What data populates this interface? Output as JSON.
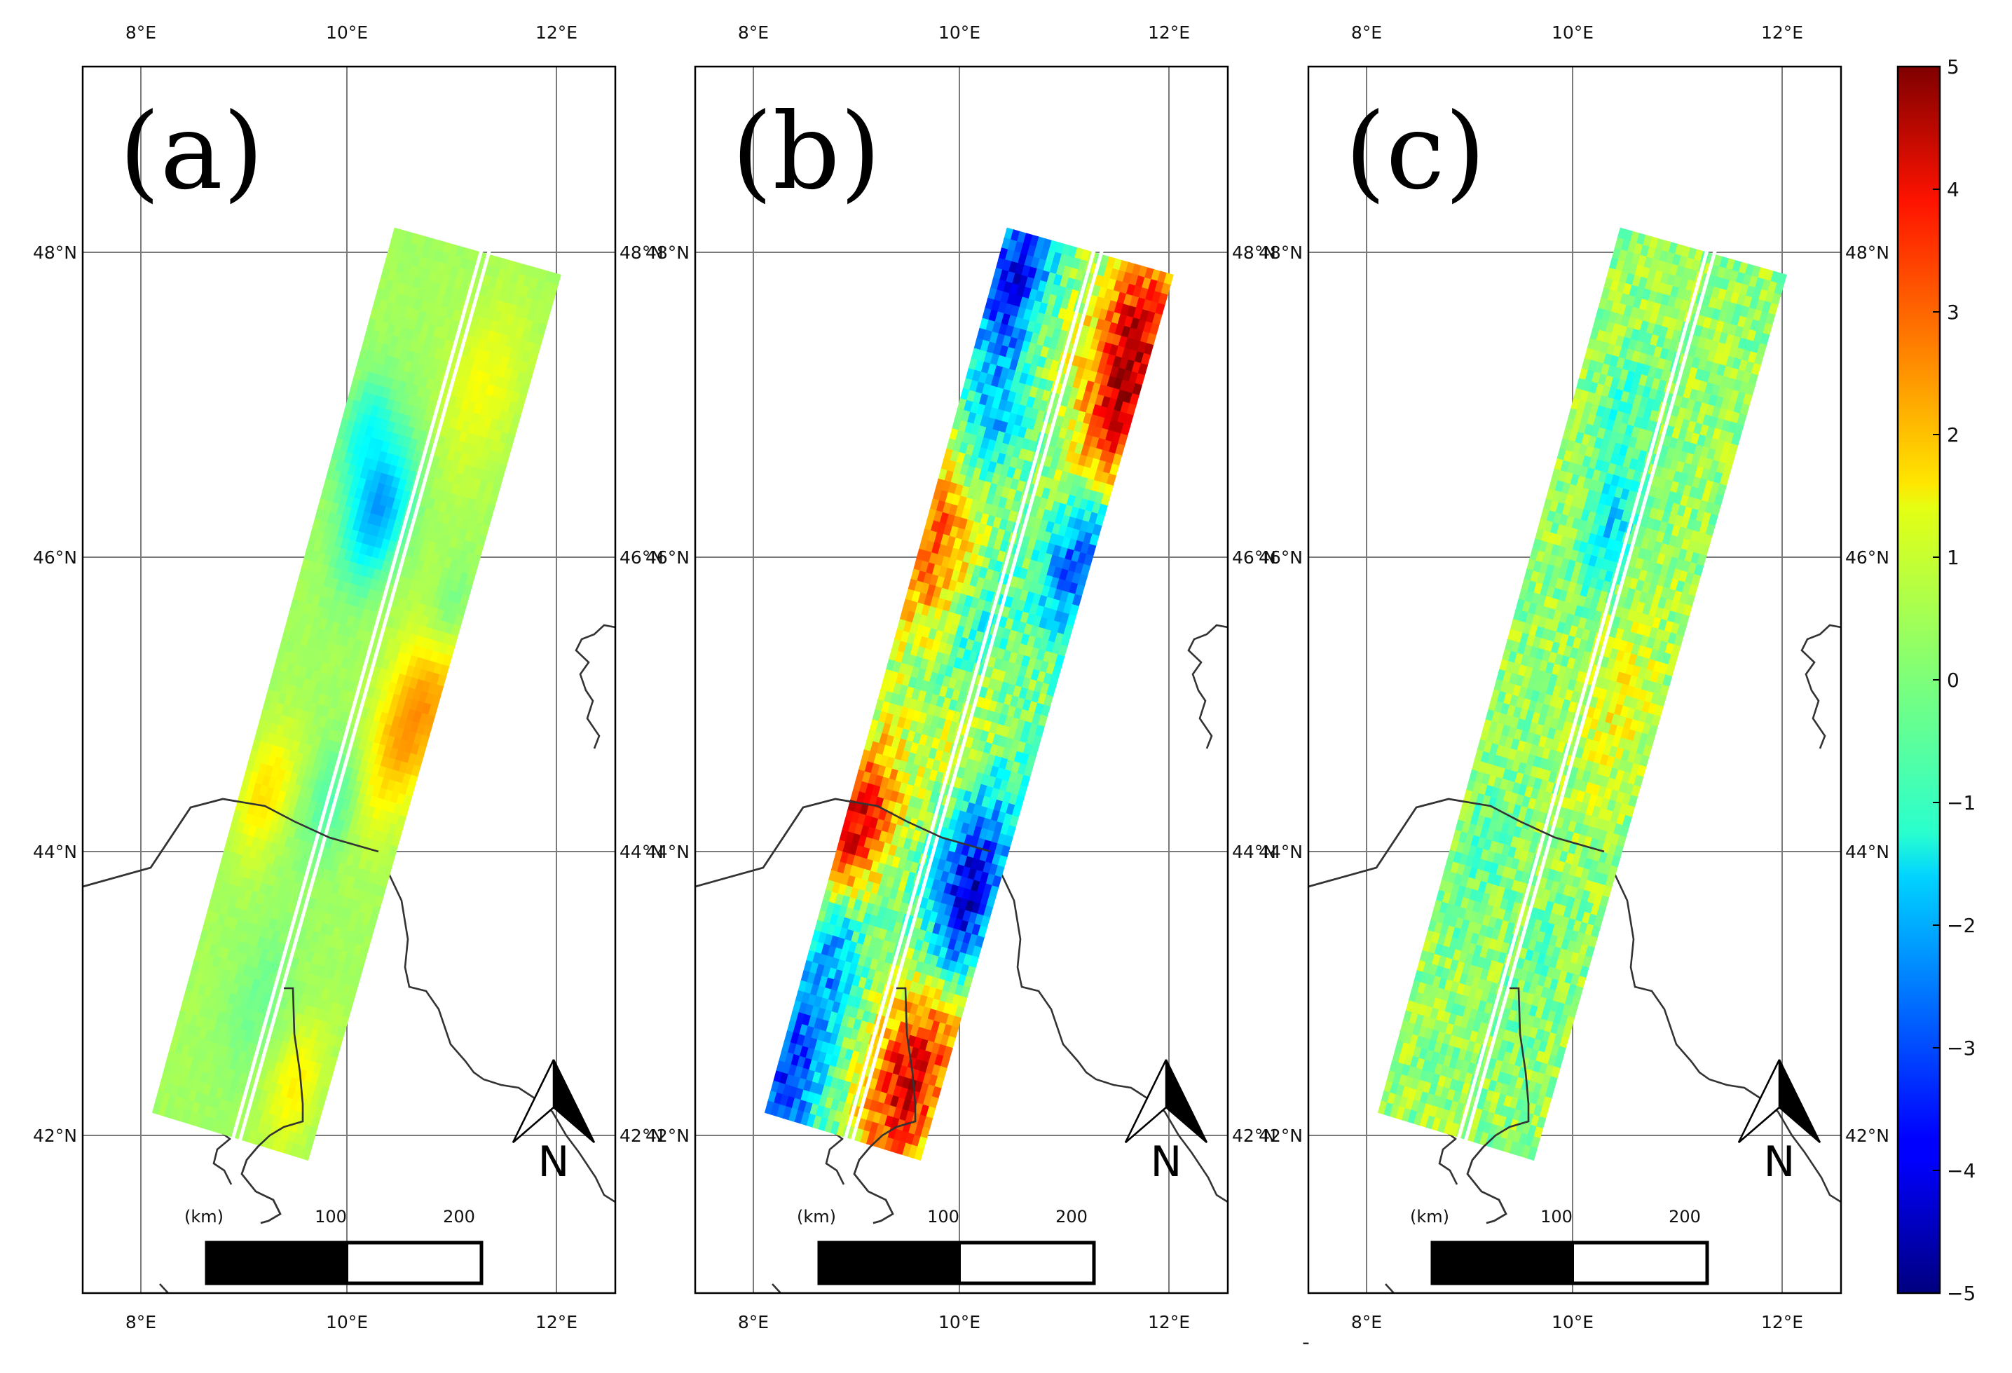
{
  "colors": {
    "background": "#ffffff",
    "frame": "#000000",
    "coast": "#333333",
    "grid": "#7a7a7a",
    "swath_gap": "#ffffff"
  },
  "colormap": "jet",
  "colorbar": {
    "min": -5,
    "max": 5,
    "tick_labels": [
      "5",
      "4",
      "3",
      "2",
      "1",
      "0",
      "−1",
      "−2",
      "−3",
      "−4",
      "−5"
    ]
  },
  "axes": {
    "lon_ticks": [
      "8°E",
      "10°E",
      "12°E"
    ],
    "lat_ticks": [
      "48°N",
      "46°N",
      "44°N",
      "42°N"
    ]
  },
  "scale_bar": {
    "unit_label": "(km)",
    "mid_label": "100",
    "end_label": "200"
  },
  "north_label": "N",
  "panels": [
    {
      "id": "a",
      "label": "(a)",
      "field": "smooth"
    },
    {
      "id": "b",
      "label": "(b)",
      "field": "strong"
    },
    {
      "id": "c",
      "label": "(c)",
      "field": "noise"
    }
  ],
  "footer_mark": "-"
}
